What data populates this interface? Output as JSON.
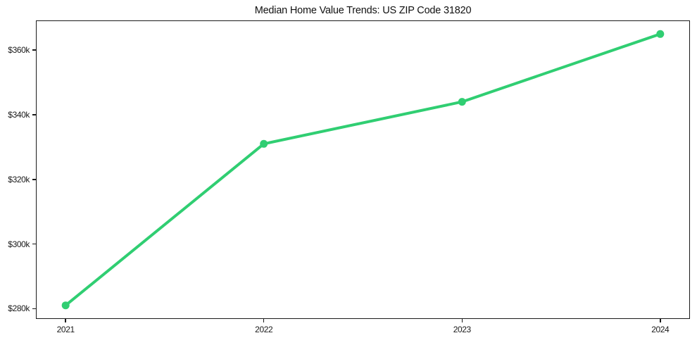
{
  "chart_data": {
    "type": "line",
    "title": "Median Home Value Trends: US ZIP Code 31820",
    "x": [
      2021,
      2022,
      2023,
      2024
    ],
    "x_tick_labels": [
      "2021",
      "2022",
      "2023",
      "2024"
    ],
    "series": [
      {
        "name": "Median Home Value",
        "values_usd": [
          281000,
          331000,
          344000,
          365000
        ]
      }
    ],
    "y_ticks_usd": [
      280000,
      300000,
      320000,
      340000,
      360000
    ],
    "y_tick_labels": [
      "$280k",
      "$300k",
      "$320k",
      "$340k",
      "$360k"
    ],
    "xlabel": "",
    "ylabel": "",
    "xlim": [
      2020.85,
      2024.15
    ],
    "ylim_usd": [
      276800,
      369200
    ],
    "grid": false,
    "legend": "none",
    "line_color": "#30ce72",
    "marker": "circle",
    "spine_color": "#1a1a1a",
    "text_color": "#1a1a1a",
    "background_color": "#ffffff"
  }
}
